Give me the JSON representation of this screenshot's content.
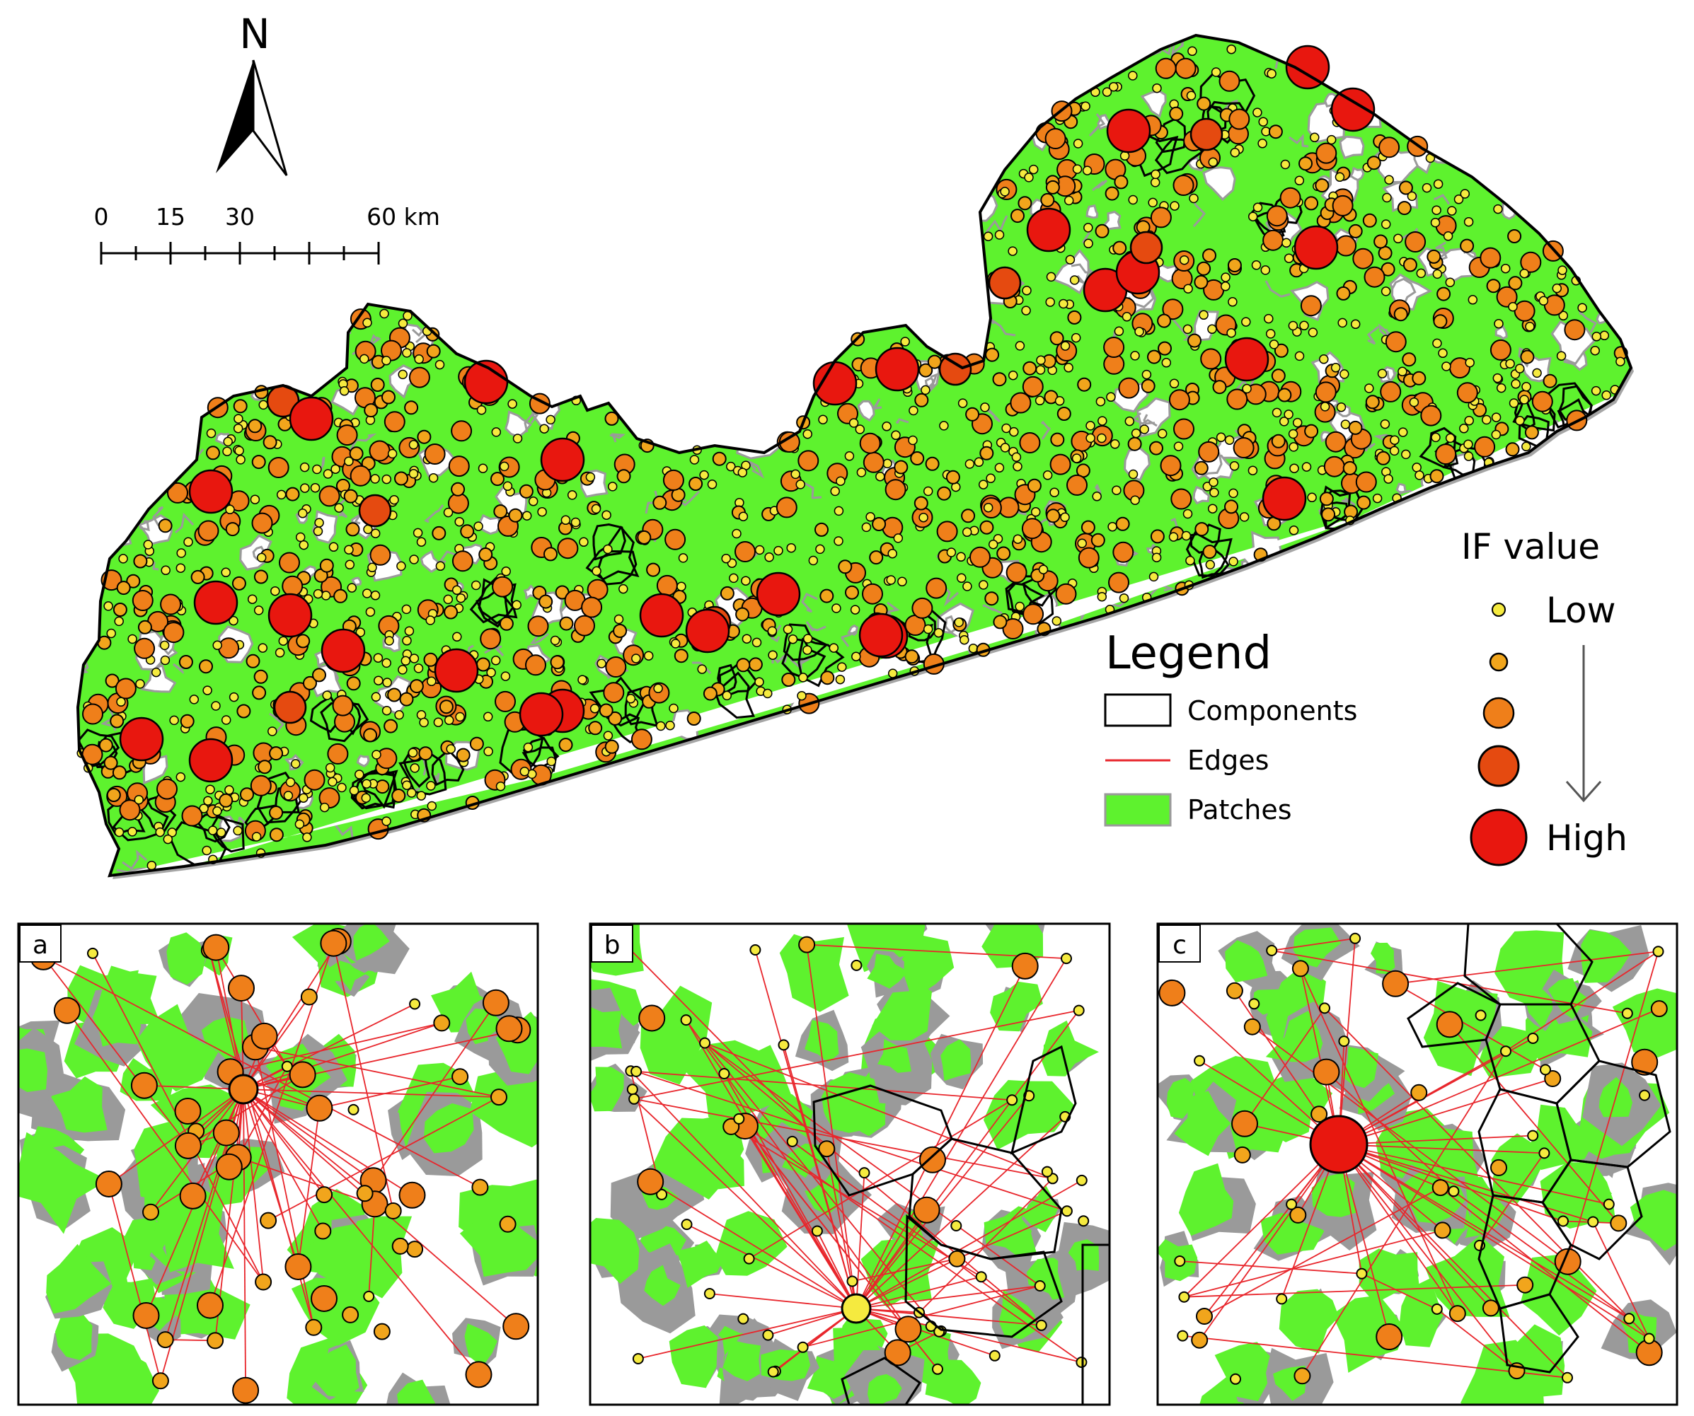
{
  "north_arrow": {
    "label": "N"
  },
  "scale_bar": {
    "ticks": [
      "0",
      "15",
      "30",
      "60 km"
    ]
  },
  "legend": {
    "title": "Legend",
    "items": [
      {
        "label": "Components",
        "symbol": "outline"
      },
      {
        "label": "Edges",
        "symbol": "line"
      },
      {
        "label": "Patches",
        "symbol": "fill"
      }
    ]
  },
  "if_legend": {
    "title": "IF value",
    "low_label": "Low",
    "high_label": "High",
    "levels": 5
  },
  "colors": {
    "patch": "#5ef22e",
    "patch_shadow": "#9a9a9a",
    "edge": "#e8262c",
    "low": "#f5ea3f",
    "low_mid": "#f1a51c",
    "mid": "#ef7f1a",
    "high_mid": "#e54a10",
    "high": "#e8170f",
    "outline": "#000000"
  },
  "insets": [
    {
      "label": "a"
    },
    {
      "label": "b"
    },
    {
      "label": "c"
    }
  ]
}
